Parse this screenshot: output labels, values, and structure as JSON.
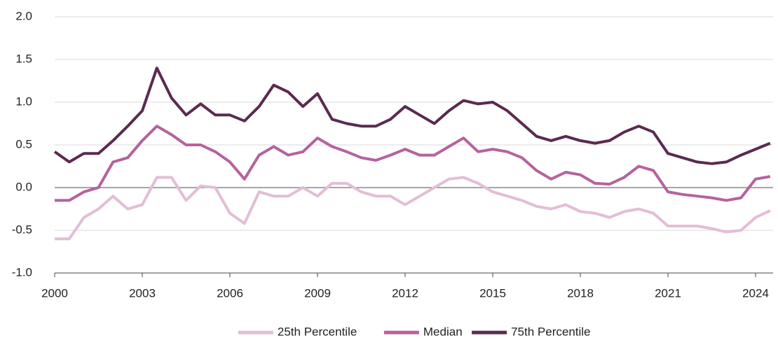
{
  "chart_data": {
    "type": "line",
    "x": [
      2000,
      2000.5,
      2001,
      2001.5,
      2002,
      2002.5,
      2003,
      2003.5,
      2004,
      2004.5,
      2005,
      2005.5,
      2006,
      2006.5,
      2007,
      2007.5,
      2008,
      2008.5,
      2009,
      2009.5,
      2010,
      2010.5,
      2011,
      2011.5,
      2012,
      2012.5,
      2013,
      2013.5,
      2014,
      2014.5,
      2015,
      2015.5,
      2016,
      2016.5,
      2017,
      2017.5,
      2018,
      2018.5,
      2019,
      2019.5,
      2020,
      2020.5,
      2021,
      2021.5,
      2022,
      2022.5,
      2023,
      2023.5,
      2024,
      2024.5
    ],
    "series": [
      {
        "name": "25th Percentile",
        "color": "#e3bdd6",
        "values": [
          -0.6,
          -0.6,
          -0.35,
          -0.25,
          -0.1,
          -0.25,
          -0.2,
          0.12,
          0.12,
          -0.15,
          0.02,
          0.0,
          -0.3,
          -0.42,
          -0.05,
          -0.1,
          -0.1,
          0.0,
          -0.1,
          0.05,
          0.05,
          -0.05,
          -0.1,
          -0.1,
          -0.2,
          -0.1,
          0.0,
          0.1,
          0.12,
          0.05,
          -0.05,
          -0.1,
          -0.15,
          -0.22,
          -0.25,
          -0.2,
          -0.28,
          -0.3,
          -0.35,
          -0.28,
          -0.25,
          -0.3,
          -0.45,
          -0.45,
          -0.45,
          -0.48,
          -0.52,
          -0.5,
          -0.35,
          -0.27
        ]
      },
      {
        "name": "Median",
        "color": "#b5629e",
        "values": [
          -0.15,
          -0.15,
          -0.05,
          0.0,
          0.3,
          0.35,
          0.55,
          0.72,
          0.62,
          0.5,
          0.5,
          0.42,
          0.3,
          0.1,
          0.38,
          0.48,
          0.38,
          0.42,
          0.58,
          0.48,
          0.42,
          0.35,
          0.32,
          0.38,
          0.45,
          0.38,
          0.38,
          0.48,
          0.58,
          0.42,
          0.45,
          0.42,
          0.35,
          0.2,
          0.1,
          0.18,
          0.15,
          0.05,
          0.04,
          0.12,
          0.25,
          0.2,
          -0.05,
          -0.08,
          -0.1,
          -0.12,
          -0.15,
          -0.12,
          0.1,
          0.13
        ]
      },
      {
        "name": "75th Percentile",
        "color": "#5b2a4f",
        "values": [
          0.42,
          0.3,
          0.4,
          0.4,
          0.55,
          0.72,
          0.9,
          1.4,
          1.05,
          0.85,
          0.98,
          0.85,
          0.85,
          0.78,
          0.95,
          1.2,
          1.12,
          0.95,
          1.1,
          0.8,
          0.75,
          0.72,
          0.72,
          0.8,
          0.95,
          0.85,
          0.75,
          0.9,
          1.02,
          0.98,
          1.0,
          0.9,
          0.75,
          0.6,
          0.55,
          0.6,
          0.55,
          0.52,
          0.55,
          0.65,
          0.72,
          0.65,
          0.4,
          0.35,
          0.3,
          0.28,
          0.3,
          0.38,
          0.45,
          0.52
        ]
      }
    ],
    "xlim": [
      2000,
      2024.6
    ],
    "xticks": [
      2000,
      2003,
      2006,
      2009,
      2012,
      2015,
      2018,
      2021,
      2024
    ],
    "ylim": [
      -1,
      2
    ],
    "yticks": [
      {
        "value": -1,
        "label": "-1.0"
      },
      {
        "value": -0.5,
        "label": "-0.5"
      },
      {
        "value": 0,
        "label": "0.0"
      },
      {
        "value": 0.5,
        "label": "0.5"
      },
      {
        "value": 1,
        "label": "1.0"
      },
      {
        "value": 1.5,
        "label": "1.5"
      },
      {
        "value": 2,
        "label": "2.0"
      }
    ],
    "grid": true,
    "legend": "bottom"
  }
}
